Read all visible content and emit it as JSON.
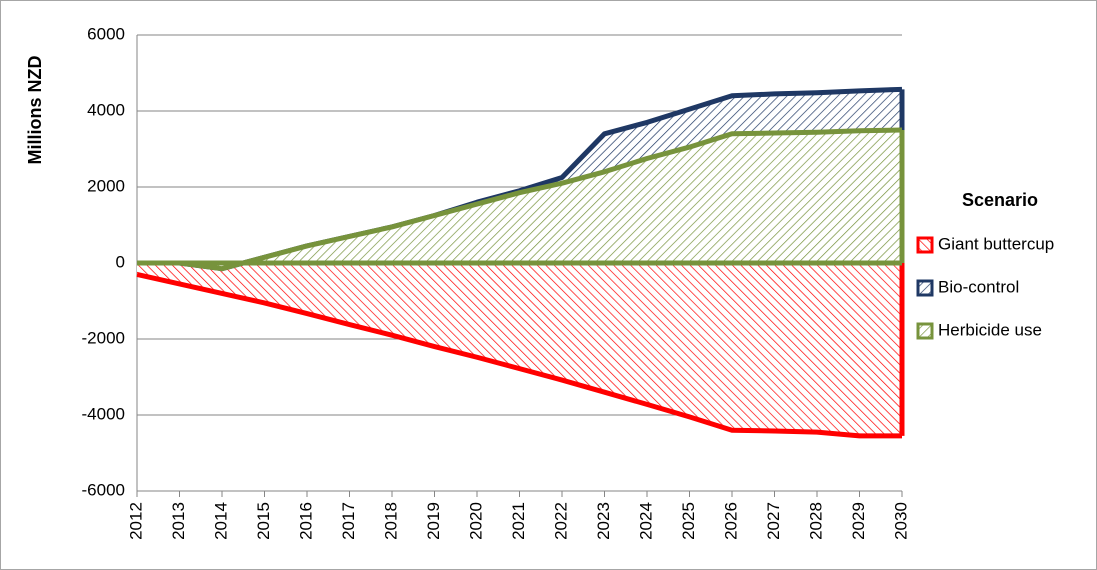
{
  "chart_data": {
    "type": "area",
    "y_label": "Millions NZD",
    "legend_title": "Scenario",
    "legend": "right",
    "grid": true,
    "categories": [
      "2012",
      "2013",
      "2014",
      "2015",
      "2016",
      "2017",
      "2018",
      "2019",
      "2020",
      "2021",
      "2022",
      "2023",
      "2024",
      "2025",
      "2026",
      "2027",
      "2028",
      "2029",
      "2030"
    ],
    "ylim": [
      -6000,
      6000
    ],
    "yticks": [
      -6000,
      -4000,
      -2000,
      0,
      2000,
      4000,
      6000
    ],
    "series": [
      {
        "name": "Giant buttercup",
        "color": "#ff0000",
        "values": [
          -300,
          -550,
          -800,
          -1050,
          -1330,
          -1620,
          -1900,
          -2200,
          -2480,
          -2780,
          -3080,
          -3400,
          -3720,
          -4050,
          -4400,
          -4420,
          -4450,
          -4550,
          -4550
        ]
      },
      {
        "name": "Bio-control",
        "color": "#1f3864",
        "values": [
          0,
          0,
          -150,
          150,
          450,
          700,
          950,
          1250,
          1600,
          1900,
          2250,
          3400,
          3700,
          4050,
          4400,
          4450,
          4480,
          4530,
          4570
        ]
      },
      {
        "name": "Herbicide use",
        "color": "#77933c",
        "values": [
          0,
          0,
          -150,
          150,
          450,
          700,
          950,
          1250,
          1550,
          1850,
          2100,
          2400,
          2750,
          3050,
          3400,
          3420,
          3440,
          3480,
          3500
        ]
      }
    ]
  }
}
